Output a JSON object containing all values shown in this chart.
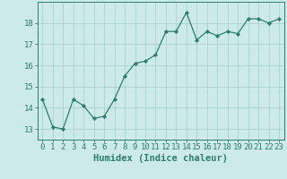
{
  "x": [
    0,
    1,
    2,
    3,
    4,
    5,
    6,
    7,
    8,
    9,
    10,
    11,
    12,
    13,
    14,
    15,
    16,
    17,
    18,
    19,
    20,
    21,
    22,
    23
  ],
  "y": [
    14.4,
    13.1,
    13.0,
    14.4,
    14.1,
    13.5,
    13.6,
    14.4,
    15.5,
    16.1,
    16.2,
    16.5,
    17.6,
    17.6,
    18.5,
    17.2,
    17.6,
    17.4,
    17.6,
    17.5,
    18.2,
    18.2,
    18.0,
    18.2
  ],
  "line_color": "#2e7d6e",
  "marker": "D",
  "marker_size": 2.2,
  "bg_color": "#cceae7",
  "grid_color": "#aad4cf",
  "axis_color": "#2e7d6e",
  "xlabel": "Humidex (Indice chaleur)",
  "ylim": [
    12.5,
    19.0
  ],
  "xlim": [
    -0.5,
    23.5
  ],
  "yticks": [
    13,
    14,
    15,
    16,
    17,
    18
  ],
  "xticks": [
    0,
    1,
    2,
    3,
    4,
    5,
    6,
    7,
    8,
    9,
    10,
    11,
    12,
    13,
    14,
    15,
    16,
    17,
    18,
    19,
    20,
    21,
    22,
    23
  ],
  "xlabel_fontsize": 7.5,
  "tick_fontsize": 6.5
}
